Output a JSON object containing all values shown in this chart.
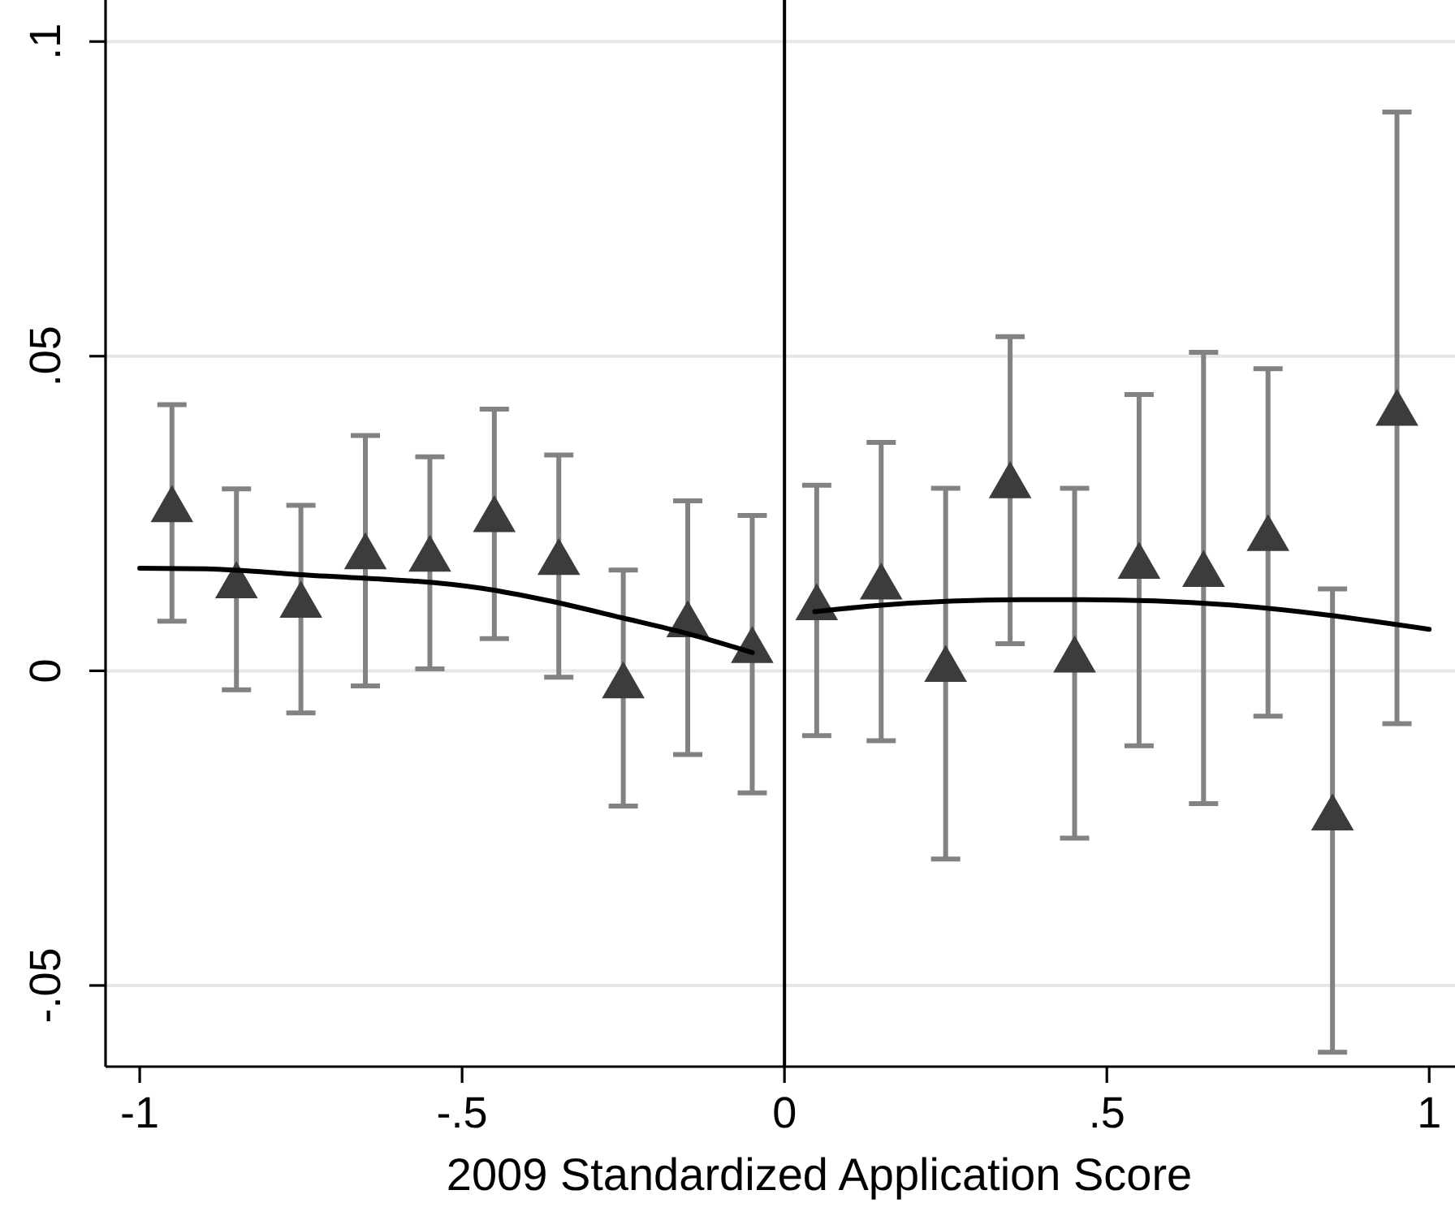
{
  "chart_data": {
    "type": "scatter",
    "xlabel": "2009 Standardized Application Score",
    "xlim": [
      -1.053,
      1.04
    ],
    "xticks": [
      {
        "value": -1,
        "label": "-1"
      },
      {
        "value": -0.5,
        "label": "-.5"
      },
      0,
      {
        "value": 0.5,
        "label": ".5"
      },
      1
    ],
    "ylim": [
      -0.0629,
      0.1066
    ],
    "yticks": [
      {
        "value": -0.05,
        "label": "-.05"
      },
      0,
      {
        "value": 0.05,
        "label": ".05"
      },
      {
        "value": 0.1,
        "label": ".1"
      }
    ],
    "grid": "y",
    "ref_lines": [
      {
        "axis": "x",
        "value": 0,
        "color": "#000000"
      }
    ],
    "series": [
      {
        "marker": "triangle",
        "color": "#3c3c3c",
        "x": [
          -0.95,
          -0.85,
          -0.75,
          -0.65,
          -0.55,
          -0.45,
          -0.35,
          -0.25,
          -0.15,
          -0.05,
          0.05,
          0.15,
          0.25,
          0.35,
          0.45,
          0.55,
          0.65,
          0.75,
          0.85,
          0.95
        ],
        "values": [
          0.0256,
          0.0135,
          0.0104,
          0.0181,
          0.0177,
          0.024,
          0.0172,
          -0.0024,
          0.0073,
          0.0032,
          0.01,
          0.0133,
          0.0002,
          0.0294,
          0.0017,
          0.0166,
          0.0153,
          0.021,
          -0.0234,
          0.0409
        ],
        "errors": [
          [
            0.0079,
            0.0423
          ],
          [
            -0.003,
            0.0289
          ],
          [
            -0.0067,
            0.0263
          ],
          [
            -0.0024,
            0.0374
          ],
          [
            0.0003,
            0.034
          ],
          [
            0.0051,
            0.0416
          ],
          [
            -0.001,
            0.0343
          ],
          [
            -0.0215,
            0.016
          ],
          [
            -0.0133,
            0.027
          ],
          [
            -0.0194,
            0.0247
          ],
          [
            -0.0103,
            0.0295
          ],
          [
            -0.0111,
            0.0363
          ],
          [
            -0.0299,
            0.029
          ],
          [
            0.0043,
            0.0531
          ],
          [
            -0.0266,
            0.029
          ],
          [
            -0.0119,
            0.0439
          ],
          [
            -0.0211,
            0.0506
          ],
          [
            -0.0072,
            0.048
          ],
          [
            -0.0606,
            0.013
          ],
          [
            -0.0084,
            0.0888
          ]
        ]
      },
      {
        "type": "line",
        "color": "#000000",
        "x": [
          -1,
          -0.897,
          -0.755,
          -0.469,
          -0.369,
          -0.251,
          -0.15,
          -0.05
        ],
        "values": [
          0.0163,
          0.0162,
          0.0153,
          0.0131,
          0.0112,
          0.0084,
          0.0059,
          0.0029
        ]
      },
      {
        "type": "line",
        "color": "#000000",
        "x": [
          0.047,
          0.147,
          0.368,
          0.465,
          0.686,
          1.0
        ],
        "values": [
          0.0094,
          0.0104,
          0.0113,
          0.0113,
          0.0105,
          0.0066
        ]
      }
    ]
  }
}
